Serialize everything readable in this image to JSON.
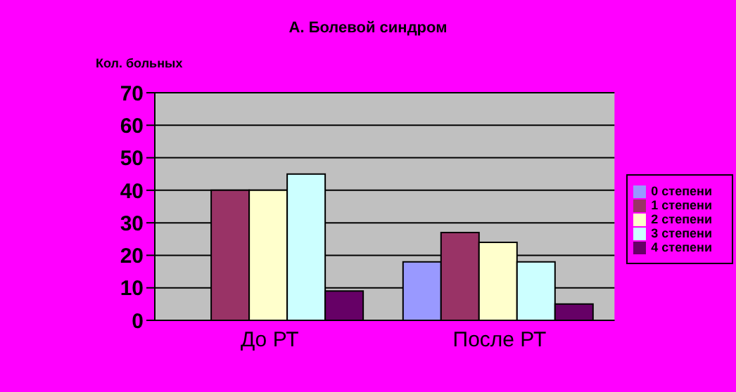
{
  "chart_data": {
    "type": "bar",
    "title": "А. Болевой синдром",
    "ylabel": "Кол. больных",
    "categories": [
      "До РТ",
      "После РТ"
    ],
    "series": [
      {
        "name": "0 степени",
        "color": "#9999ff",
        "values": [
          0,
          18
        ]
      },
      {
        "name": "1 степени",
        "color": "#993366",
        "values": [
          40,
          27
        ]
      },
      {
        "name": "2 степени",
        "color": "#ffffcc",
        "values": [
          40,
          24
        ]
      },
      {
        "name": "3 степени",
        "color": "#ccffff",
        "values": [
          45,
          18
        ]
      },
      {
        "name": "4 степени",
        "color": "#660066",
        "values": [
          9,
          5
        ]
      }
    ],
    "ylim": [
      0,
      70
    ],
    "yticks": [
      0,
      10,
      20,
      30,
      40,
      50,
      60,
      70
    ],
    "grid": "y",
    "legend": "right"
  }
}
